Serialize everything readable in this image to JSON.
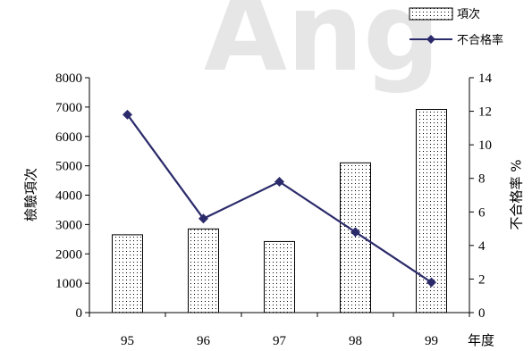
{
  "watermark_text": "Ang",
  "chart_data": {
    "type": "bar",
    "categories": [
      "95",
      "96",
      "97",
      "98",
      "99"
    ],
    "xlabel": "年度",
    "ylabel": "檢驗項次",
    "y2label": "不合格率 %",
    "ylim": [
      0,
      8000
    ],
    "y2lim": [
      0,
      14
    ],
    "yticks": [
      "0",
      "1000",
      "2000",
      "3000",
      "4000",
      "5000",
      "6000",
      "7000",
      "8000"
    ],
    "y2ticks": [
      "0",
      "2",
      "4",
      "6",
      "8",
      "10",
      "12",
      "14"
    ],
    "series": [
      {
        "name": "項次",
        "type": "bar",
        "axis": "left",
        "values": [
          2650,
          2850,
          2420,
          5100,
          6920
        ]
      },
      {
        "name": "不合格率",
        "type": "line",
        "axis": "right",
        "values": [
          11.8,
          5.6,
          7.8,
          4.8,
          1.8
        ]
      }
    ],
    "legend": "top-right",
    "grid": false,
    "colors": {
      "line": "#2b2b6b",
      "bar_fill": "#ffffff",
      "bar_stroke": "#000000",
      "bar_dots": "#000000"
    }
  }
}
